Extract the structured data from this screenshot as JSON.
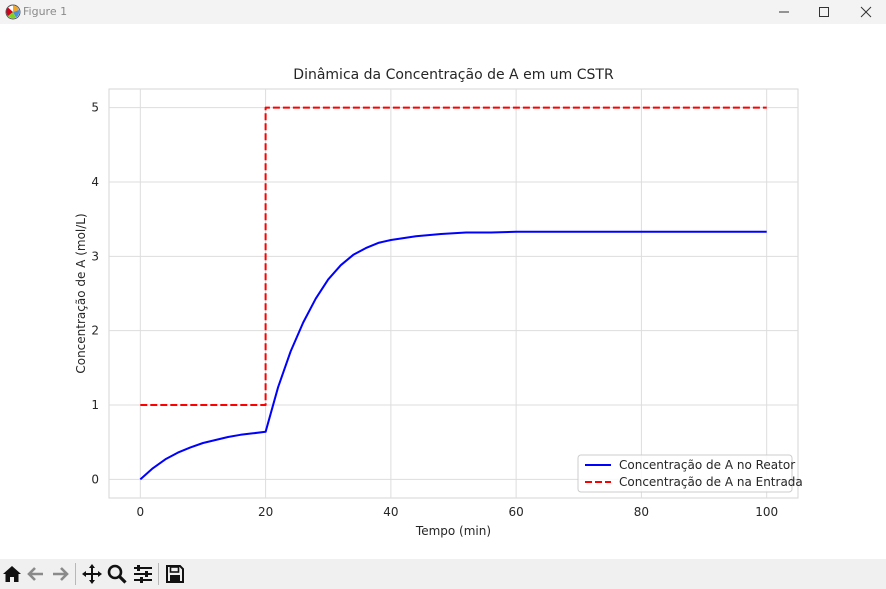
{
  "window": {
    "title": "Figure 1",
    "controls": [
      "minimize-icon",
      "maximize-icon",
      "close-icon"
    ]
  },
  "toolbar": {
    "buttons": [
      {
        "name": "home-icon",
        "tooltip": "Reset original view"
      },
      {
        "name": "back-arrow-icon",
        "tooltip": "Back"
      },
      {
        "name": "forward-arrow-icon",
        "tooltip": "Forward"
      },
      {
        "name": "pan-icon",
        "tooltip": "Pan"
      },
      {
        "name": "zoom-icon",
        "tooltip": "Zoom"
      },
      {
        "name": "configure-subplots-icon",
        "tooltip": "Configure subplots"
      },
      {
        "name": "save-icon",
        "tooltip": "Save"
      }
    ]
  },
  "chart_data": {
    "type": "line",
    "title": "Dinâmica da Concentração de A em um CSTR",
    "xlabel": "Tempo (min)",
    "ylabel": "Concentração de A (mol/L)",
    "xlim": [
      -5,
      105
    ],
    "ylim": [
      -0.25,
      5.25
    ],
    "xticks": [
      0,
      20,
      40,
      60,
      80,
      100
    ],
    "yticks": [
      0,
      1,
      2,
      3,
      4,
      5
    ],
    "grid": true,
    "legend_position": "lower right",
    "series": [
      {
        "name": "Concentração de A no Reator",
        "style": "solid",
        "color": "#0000ff",
        "x": [
          0,
          2,
          4,
          6,
          8,
          10,
          12,
          14,
          16,
          18,
          20,
          22,
          24,
          26,
          28,
          30,
          32,
          34,
          36,
          38,
          40,
          44,
          48,
          52,
          56,
          60,
          70,
          80,
          90,
          100
        ],
        "y": [
          0,
          0.15,
          0.27,
          0.36,
          0.43,
          0.49,
          0.53,
          0.57,
          0.6,
          0.62,
          0.64,
          1.24,
          1.72,
          2.11,
          2.43,
          2.69,
          2.88,
          3.02,
          3.11,
          3.18,
          3.22,
          3.27,
          3.3,
          3.32,
          3.32,
          3.33,
          3.33,
          3.33,
          3.33,
          3.33
        ]
      },
      {
        "name": "Concentração de A na Entrada",
        "style": "dashed",
        "color": "#ff0000",
        "x": [
          0,
          20,
          20,
          100
        ],
        "y": [
          1,
          1,
          5,
          5
        ]
      }
    ]
  }
}
